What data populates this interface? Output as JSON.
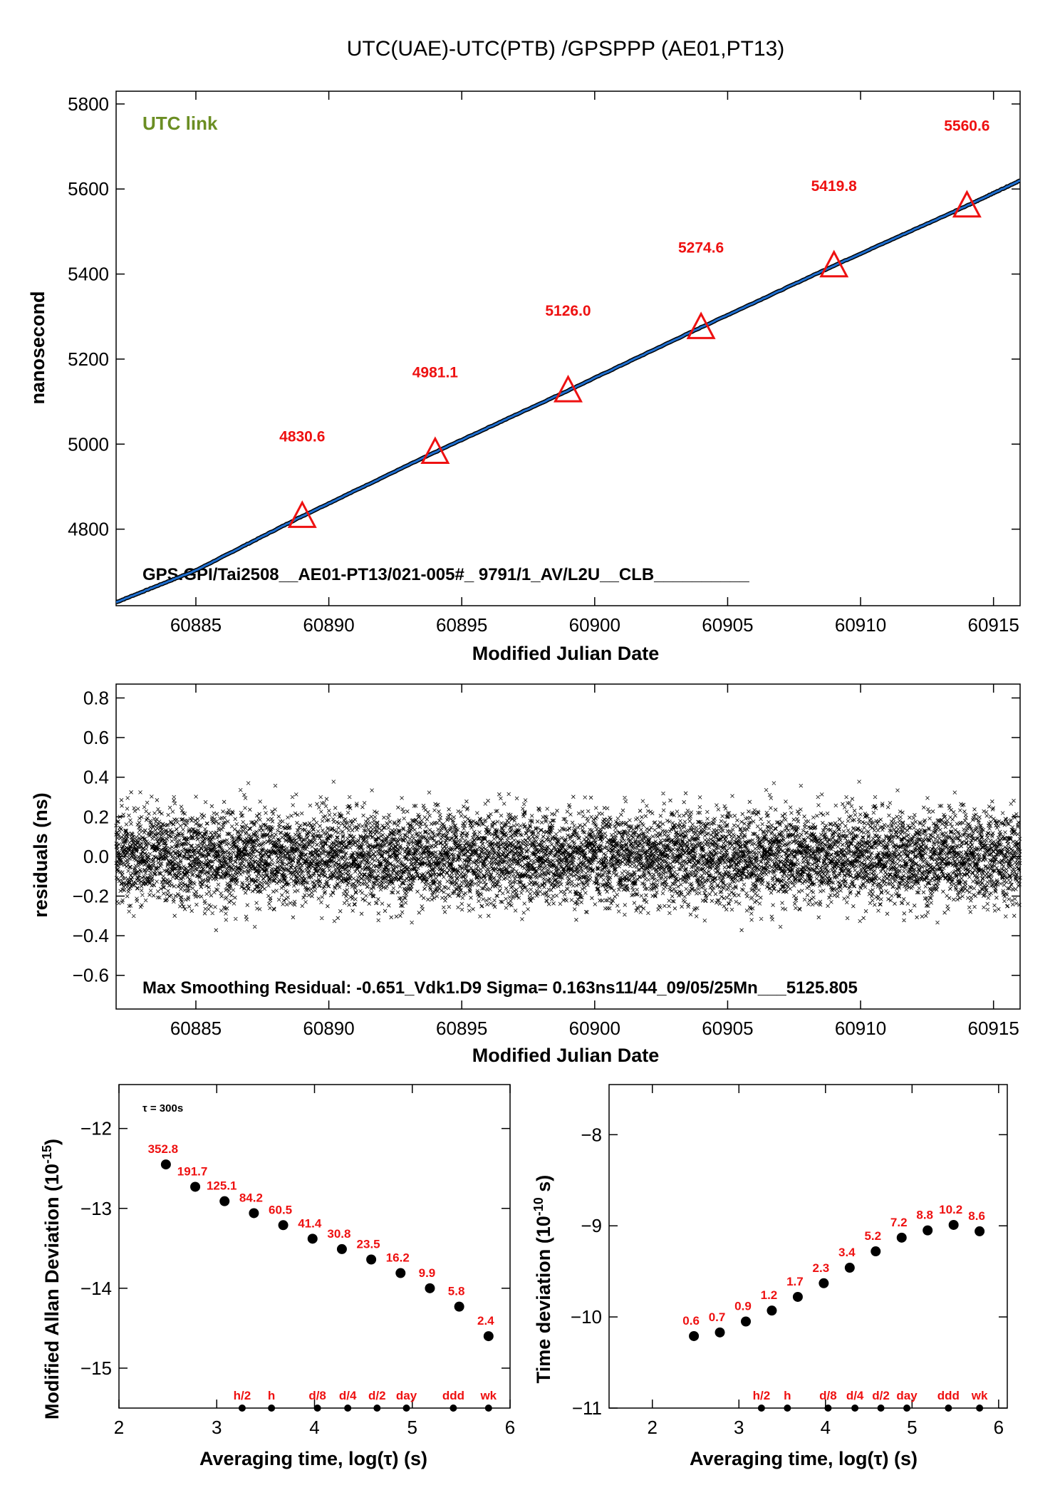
{
  "title": "UTC(UAE)-UTC(PTB)  /GPSPPP  (AE01,PT13)",
  "colors": {
    "line": "#1f6fd0",
    "marker": "#ee1111",
    "label": "#ee1111",
    "green": "#6b8e23",
    "residual": "#000000"
  },
  "chart_data": [
    {
      "type": "line",
      "ylabel": "nanosecond",
      "xlabel": "Modified Julian Date",
      "xlim": [
        60882,
        60916
      ],
      "ylim": [
        4620,
        5830
      ],
      "xticks": [
        60885,
        60890,
        60895,
        60900,
        60905,
        60910,
        60915
      ],
      "yticks": [
        4800,
        5000,
        5200,
        5400,
        5600,
        5800
      ],
      "tag": "UTC link",
      "footnote": "GPS.GPI/Tai2508__AE01-PT13/021-005#_  9791/1_AV/L2U__CLB__________",
      "series": [
        {
          "x": [
            60882,
            60885,
            60889,
            60894,
            60899,
            60904,
            60909,
            60914,
            60916
          ],
          "y": [
            4628,
            4703,
            4830.6,
            4981.1,
            5126.0,
            5274.6,
            5419.8,
            5560.6,
            5620
          ]
        }
      ],
      "markers": [
        {
          "x": 60889,
          "y": 4830.6,
          "label": "4830.6"
        },
        {
          "x": 60894,
          "y": 4981.1,
          "label": "4981.1"
        },
        {
          "x": 60899,
          "y": 5126.0,
          "label": "5126.0"
        },
        {
          "x": 60904,
          "y": 5274.6,
          "label": "5274.6"
        },
        {
          "x": 60909,
          "y": 5419.8,
          "label": "5419.8"
        },
        {
          "x": 60914,
          "y": 5560.6,
          "label": "5560.6"
        }
      ]
    },
    {
      "type": "scatter",
      "ylabel": "residuals (ns)",
      "xlabel": "Modified Julian Date",
      "xlim": [
        60882,
        60916
      ],
      "ylim": [
        -0.77,
        0.87
      ],
      "xticks": [
        60885,
        60890,
        60895,
        60900,
        60905,
        60910,
        60915
      ],
      "yticks": [
        -0.6,
        -0.4,
        -0.2,
        0.0,
        0.2,
        0.4,
        0.6,
        0.8
      ],
      "ytick_labels": [
        "−0.6",
        "−0.4",
        "−0.2",
        "0.0",
        "0.2",
        "0.4",
        "0.6",
        "0.8"
      ],
      "sigma": 0.163,
      "footnote": "Max Smoothing Residual: -0.651_Vdk1.D9  Sigma= 0.163ns11/44_09/05/25Mn___5125.805"
    },
    {
      "type": "scatter",
      "ylabel": "Modified Allan Deviation (10",
      "ylabel_sup": "-15",
      "ylabel_end": ")",
      "xlabel": "Averaging time, log(τ) (s)",
      "tau_note": "τ = 300s",
      "xlim": [
        2,
        6
      ],
      "ylim": [
        -15.5,
        -11.45
      ],
      "xticks": [
        2,
        3,
        4,
        5,
        6
      ],
      "yticks": [
        -12,
        -13,
        -14,
        -15
      ],
      "ytick_labels": [
        "−12",
        "−13",
        "−14",
        "−15"
      ],
      "points": [
        {
          "x": 2.48,
          "y": -12.45,
          "label": "352.8"
        },
        {
          "x": 2.78,
          "y": -12.73,
          "label": "191.7"
        },
        {
          "x": 3.08,
          "y": -12.91,
          "label": "125.1"
        },
        {
          "x": 3.38,
          "y": -13.06,
          "label": "84.2"
        },
        {
          "x": 3.68,
          "y": -13.21,
          "label": "60.5"
        },
        {
          "x": 3.98,
          "y": -13.38,
          "label": "41.4"
        },
        {
          "x": 4.28,
          "y": -13.51,
          "label": "30.8"
        },
        {
          "x": 4.58,
          "y": -13.64,
          "label": "23.5"
        },
        {
          "x": 4.88,
          "y": -13.81,
          "label": "16.2"
        },
        {
          "x": 5.18,
          "y": -14.0,
          "label": "9.9"
        },
        {
          "x": 5.48,
          "y": -14.23,
          "label": "5.8"
        },
        {
          "x": 5.78,
          "y": -14.6,
          "label": "2.4"
        }
      ],
      "marks": [
        {
          "x": 3.26,
          "label": "h/2"
        },
        {
          "x": 3.56,
          "label": "h"
        },
        {
          "x": 4.03,
          "label": "d/8"
        },
        {
          "x": 4.34,
          "label": "d/4"
        },
        {
          "x": 4.64,
          "label": "d/2"
        },
        {
          "x": 4.94,
          "label": "day"
        },
        {
          "x": 5.42,
          "label": "ddd"
        },
        {
          "x": 5.78,
          "label": "wk"
        }
      ]
    },
    {
      "type": "scatter",
      "ylabel": "Time deviation (10",
      "ylabel_sup": "-10",
      "ylabel_end": " s)",
      "xlabel": "Averaging time, log(τ) (s)",
      "xlim": [
        1.5,
        6.1
      ],
      "ylim": [
        -11,
        -7.45
      ],
      "xticks": [
        2,
        3,
        4,
        5,
        6
      ],
      "yticks": [
        -8,
        -9,
        -10,
        -11
      ],
      "ytick_labels": [
        "−8",
        "−9",
        "−10",
        "−11"
      ],
      "points": [
        {
          "x": 2.48,
          "y": -10.21,
          "label": "0.6"
        },
        {
          "x": 2.78,
          "y": -10.17,
          "label": "0.7"
        },
        {
          "x": 3.08,
          "y": -10.05,
          "label": "0.9"
        },
        {
          "x": 3.38,
          "y": -9.93,
          "label": "1.2"
        },
        {
          "x": 3.68,
          "y": -9.78,
          "label": "1.7"
        },
        {
          "x": 3.98,
          "y": -9.63,
          "label": "2.3"
        },
        {
          "x": 4.28,
          "y": -9.46,
          "label": "3.4"
        },
        {
          "x": 4.58,
          "y": -9.28,
          "label": "5.2"
        },
        {
          "x": 4.88,
          "y": -9.13,
          "label": "7.2"
        },
        {
          "x": 5.18,
          "y": -9.05,
          "label": "8.8"
        },
        {
          "x": 5.48,
          "y": -8.99,
          "label": "10.2"
        },
        {
          "x": 5.78,
          "y": -9.06,
          "label": "8.6"
        }
      ],
      "marks": [
        {
          "x": 3.26,
          "label": "h/2"
        },
        {
          "x": 3.56,
          "label": "h"
        },
        {
          "x": 4.03,
          "label": "d/8"
        },
        {
          "x": 4.34,
          "label": "d/4"
        },
        {
          "x": 4.64,
          "label": "d/2"
        },
        {
          "x": 4.94,
          "label": "day"
        },
        {
          "x": 5.42,
          "label": "ddd"
        },
        {
          "x": 5.78,
          "label": "wk"
        }
      ]
    }
  ]
}
